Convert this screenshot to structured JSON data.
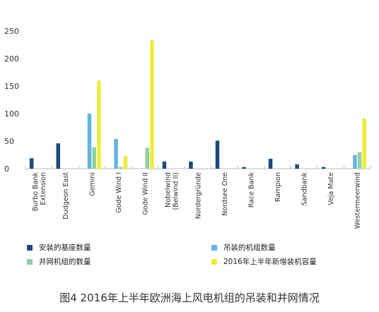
{
  "chart_data": {
    "type": "bar",
    "categories": [
      "Burbo Bank Extension",
      "Dudgeon East",
      "Gemini",
      "Gode Wind I",
      "Gode Wind II",
      "Nobelwind (Belwind II)",
      "Nordergründe",
      "Nordsee One",
      "Race Bank",
      "Rampion",
      "Sandbank",
      "Veja Mate",
      "Westermeerwind"
    ],
    "category_lines": [
      [
        "Burbo Bank",
        "Extension"
      ],
      [
        "Dudgeon East"
      ],
      [
        "Gemini"
      ],
      [
        "Gode Wind I"
      ],
      [
        "Gode Wind II"
      ],
      [
        "Nobelwind",
        "(Belwind II)"
      ],
      [
        "Nordergründe"
      ],
      [
        "Nordsee One"
      ],
      [
        "Race Bank"
      ],
      [
        "Rampion"
      ],
      [
        "Sandbank"
      ],
      [
        "Veja Mate"
      ],
      [
        "Westermeerwind"
      ]
    ],
    "series": [
      {
        "name": "安装的基座数量",
        "color": "#1b4a7e",
        "values": [
          19,
          46,
          0,
          0,
          0,
          13,
          13,
          51,
          3,
          18,
          8,
          3,
          0
        ]
      },
      {
        "name": "吊装的机组数量",
        "color": "#65b4de",
        "values": [
          0,
          0,
          100,
          54,
          0,
          0,
          0,
          0,
          0,
          0,
          0,
          0,
          25
        ]
      },
      {
        "name": "并网机组的数量",
        "color": "#8fd1a0",
        "values": [
          0,
          0,
          39,
          3,
          38,
          0,
          0,
          0,
          0,
          0,
          0,
          0,
          30
        ]
      },
      {
        "name": "2016年上半年新增装机容量",
        "color": "#eded3c",
        "values": [
          0,
          0,
          160,
          23,
          233,
          0,
          0,
          0,
          0,
          0,
          0,
          0,
          91
        ]
      }
    ],
    "yticks": [
      "0",
      "50",
      "100",
      "150",
      "200",
      "250"
    ],
    "ylim": [
      0,
      250
    ],
    "grid": false,
    "legend_position": "bottom"
  },
  "legend": {
    "left": [
      "安装的基座数量",
      "并网机组的数量"
    ],
    "right": [
      "吊装的机组数量",
      "2016年上半年新增装机容量"
    ]
  },
  "caption": "图4 2016年上半年欧洲海上风电机组的吊装和并网情况"
}
